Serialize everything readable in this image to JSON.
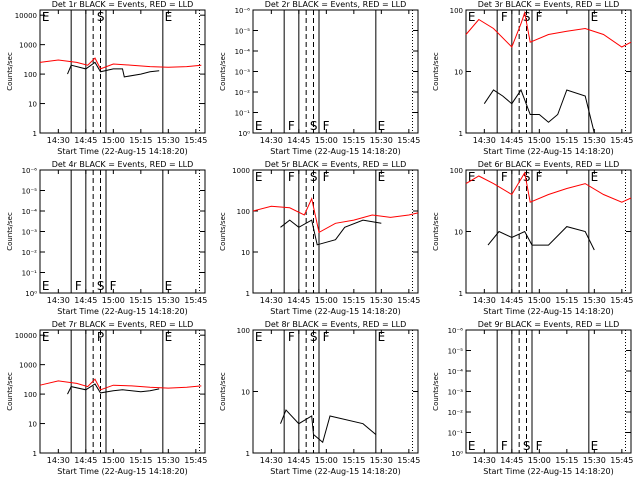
{
  "event_lines": [
    {
      "x": "14:37",
      "style": "solid"
    },
    {
      "x": "14:45",
      "style": "solid"
    },
    {
      "x": "14:49",
      "style": "dashed"
    },
    {
      "x": "14:53",
      "style": "dashed"
    },
    {
      "x": "14:56",
      "style": "solid"
    },
    {
      "x": "15:27",
      "style": "solid"
    },
    {
      "x": "15:47",
      "style": "dotted"
    }
  ],
  "chart_data": [
    {
      "type": "line",
      "title": "Det 1r BLACK = Events, RED = LLD",
      "xlabel": "Start Time (22-Aug-15 14:18:20)",
      "ylabel": "Counts/sec",
      "xlim": [
        "14:20",
        "15:50"
      ],
      "xticks": [
        "14:30",
        "14:45",
        "15:00",
        "15:15",
        "15:30",
        "15:45"
      ],
      "log_y": true,
      "ylim": [
        1,
        15000
      ],
      "yticks": [
        1,
        10,
        100,
        1000,
        10000
      ],
      "annotation_position": "top",
      "annotations": [
        {
          "text": "E",
          "x": "14:21"
        },
        {
          "text": "S",
          "x": "14:51"
        },
        {
          "text": "E",
          "x": "15:28"
        }
      ],
      "series": [
        {
          "color": "#ff0000",
          "x": [
            "14:20",
            "14:30",
            "14:40",
            "14:46",
            "14:50",
            "14:53",
            "15:00",
            "15:10",
            "15:20",
            "15:30",
            "15:40",
            "15:48"
          ],
          "values": [
            250,
            300,
            250,
            200,
            350,
            150,
            220,
            200,
            180,
            170,
            180,
            200
          ]
        },
        {
          "color": "#000000",
          "x": [
            "14:35",
            "14:37",
            "14:45",
            "14:50",
            "14:53",
            "15:00",
            "15:05",
            "15:06",
            "15:15",
            "15:20",
            "15:25"
          ],
          "values": [
            100,
            200,
            150,
            250,
            120,
            150,
            150,
            80,
            100,
            120,
            130
          ]
        }
      ]
    },
    {
      "type": "line",
      "title": "Det 2r BLACK = Events, RED = LLD",
      "xlabel": "Start Time (22-Aug-15 14:18:20)",
      "ylabel": "Counts/sec",
      "xlim": [
        "14:20",
        "15:50"
      ],
      "xticks": [
        "14:30",
        "14:45",
        "15:00",
        "15:15",
        "15:30",
        "15:45"
      ],
      "log_y": true,
      "ylim": [
        1,
        1e-06
      ],
      "yticks": [
        {
          "value": 1,
          "label": "10⁰"
        },
        {
          "value": 0.1,
          "label": "10⁻¹"
        },
        {
          "value": 0.01,
          "label": "10⁻²"
        },
        {
          "value": 0.001,
          "label": "10⁻³"
        },
        {
          "value": 0.0001,
          "label": "10⁻⁴"
        },
        {
          "value": 1e-05,
          "label": "10⁻⁵"
        },
        {
          "value": 1e-06,
          "label": "10⁻⁶"
        }
      ],
      "annotation_position": "bottom",
      "annotations": [
        {
          "text": "E",
          "x": "14:21"
        },
        {
          "text": "F",
          "x": "14:39"
        },
        {
          "text": "S",
          "x": "14:51"
        },
        {
          "text": "F",
          "x": "14:58"
        },
        {
          "text": "E",
          "x": "15:28"
        }
      ],
      "series": []
    },
    {
      "type": "line",
      "title": "Det 3r BLACK = Events, RED = LLD",
      "xlabel": "Start Time (22-Aug-15 14:18:20)",
      "ylabel": "Counts/sec",
      "xlim": [
        "14:20",
        "15:50"
      ],
      "xticks": [
        "14:30",
        "14:45",
        "15:00",
        "15:15",
        "15:30",
        "15:45"
      ],
      "log_y": true,
      "ylim": [
        1,
        100
      ],
      "yticks": [
        1,
        10,
        100
      ],
      "annotation_position": "top",
      "annotations": [
        {
          "text": "E",
          "x": "14:21"
        },
        {
          "text": "F",
          "x": "14:39"
        },
        {
          "text": "S",
          "x": "14:51"
        },
        {
          "text": "F",
          "x": "14:58"
        },
        {
          "text": "E",
          "x": "15:28"
        }
      ],
      "series": [
        {
          "color": "#ff0000",
          "x": [
            "14:20",
            "14:27",
            "14:35",
            "14:45",
            "14:50",
            "14:52",
            "14:55",
            "15:05",
            "15:15",
            "15:25",
            "15:35",
            "15:45",
            "15:50"
          ],
          "values": [
            40,
            70,
            50,
            25,
            60,
            90,
            30,
            40,
            45,
            50,
            40,
            25,
            30
          ]
        },
        {
          "color": "#000000",
          "x": [
            "14:30",
            "14:35",
            "14:40",
            "14:45",
            "14:50",
            "14:55",
            "15:00",
            "15:05",
            "15:10",
            "15:15",
            "15:25",
            "15:30"
          ],
          "values": [
            3,
            5,
            4,
            3,
            5,
            2,
            2,
            1.5,
            2,
            5,
            4,
            1
          ]
        }
      ]
    },
    {
      "type": "line",
      "title": "Det 4r BLACK = Events, RED = LLD",
      "xlabel": "Start Time (22-Aug-15 14:18:20)",
      "ylabel": "Counts/sec",
      "xlim": [
        "14:20",
        "15:50"
      ],
      "xticks": [
        "14:30",
        "14:45",
        "15:00",
        "15:15",
        "15:30",
        "15:45"
      ],
      "log_y": true,
      "ylim": [
        1,
        1e-06
      ],
      "yticks": [
        {
          "value": 1,
          "label": "10⁰"
        },
        {
          "value": 0.1,
          "label": "10⁻¹"
        },
        {
          "value": 0.01,
          "label": "10⁻²"
        },
        {
          "value": 0.001,
          "label": "10⁻³"
        },
        {
          "value": 0.0001,
          "label": "10⁻⁴"
        },
        {
          "value": 1e-05,
          "label": "10⁻⁵"
        },
        {
          "value": 1e-06,
          "label": "10⁻⁶"
        }
      ],
      "annotation_position": "bottom",
      "annotations": [
        {
          "text": "E",
          "x": "14:21"
        },
        {
          "text": "F",
          "x": "14:39"
        },
        {
          "text": "S",
          "x": "14:51"
        },
        {
          "text": "F",
          "x": "14:58"
        },
        {
          "text": "E",
          "x": "15:28"
        }
      ],
      "series": []
    },
    {
      "type": "line",
      "title": "Det 5r BLACK = Events, RED = LLD",
      "xlabel": "Start Time (22-Aug-15 14:18:20)",
      "ylabel": "Counts/sec",
      "xlim": [
        "14:20",
        "15:50"
      ],
      "xticks": [
        "14:30",
        "14:45",
        "15:00",
        "15:15",
        "15:30",
        "15:45"
      ],
      "log_y": true,
      "ylim": [
        1,
        1000
      ],
      "yticks": [
        1,
        10,
        100,
        1000
      ],
      "annotation_position": "top",
      "annotations": [
        {
          "text": "E",
          "x": "14:21"
        },
        {
          "text": "F",
          "x": "14:39"
        },
        {
          "text": "S",
          "x": "14:51"
        },
        {
          "text": "F",
          "x": "14:58"
        },
        {
          "text": "E",
          "x": "15:28"
        }
      ],
      "series": [
        {
          "color": "#ff0000",
          "x": [
            "14:20",
            "14:30",
            "14:40",
            "14:48",
            "14:52",
            "14:56",
            "15:05",
            "15:15",
            "15:25",
            "15:35",
            "15:45",
            "15:50"
          ],
          "values": [
            100,
            130,
            120,
            80,
            200,
            30,
            50,
            60,
            80,
            70,
            80,
            90
          ]
        },
        {
          "color": "#000000",
          "x": [
            "14:35",
            "14:40",
            "14:45",
            "14:52",
            "14:55",
            "15:05",
            "15:10",
            "15:20",
            "15:30"
          ],
          "values": [
            40,
            60,
            40,
            60,
            15,
            20,
            40,
            60,
            50
          ]
        }
      ]
    },
    {
      "type": "line",
      "title": "Det 6r BLACK = Events, RED = LLD",
      "xlabel": "Start Time (22-Aug-15 14:18:20)",
      "ylabel": "Counts/sec",
      "xlim": [
        "14:20",
        "15:50"
      ],
      "xticks": [
        "14:30",
        "14:45",
        "15:00",
        "15:15",
        "15:30",
        "15:45"
      ],
      "log_y": true,
      "ylim": [
        1,
        100
      ],
      "yticks": [
        1,
        10,
        100
      ],
      "annotation_position": "top",
      "annotations": [
        {
          "text": "E",
          "x": "14:21"
        },
        {
          "text": "F",
          "x": "14:39"
        },
        {
          "text": "S",
          "x": "14:51"
        },
        {
          "text": "F",
          "x": "14:58"
        },
        {
          "text": "E",
          "x": "15:28"
        }
      ],
      "series": [
        {
          "color": "#ff0000",
          "x": [
            "14:20",
            "14:27",
            "14:35",
            "14:45",
            "14:52",
            "14:55",
            "15:05",
            "15:15",
            "15:25",
            "15:35",
            "15:45",
            "15:50"
          ],
          "values": [
            60,
            80,
            60,
            40,
            90,
            30,
            40,
            50,
            60,
            40,
            30,
            35
          ]
        },
        {
          "color": "#000000",
          "x": [
            "14:32",
            "14:38",
            "14:45",
            "14:52",
            "14:56",
            "15:05",
            "15:15",
            "15:25",
            "15:30"
          ],
          "values": [
            6,
            10,
            8,
            10,
            6,
            6,
            12,
            10,
            5
          ]
        }
      ]
    },
    {
      "type": "line",
      "title": "Det 7r BLACK = Events, RED = LLD",
      "xlabel": "Start Time (22-Aug-15 14:18:20)",
      "ylabel": "Counts/sec",
      "xlim": [
        "14:20",
        "15:50"
      ],
      "xticks": [
        "14:30",
        "14:45",
        "15:00",
        "15:15",
        "15:30",
        "15:45"
      ],
      "log_y": true,
      "ylim": [
        1,
        15000
      ],
      "yticks": [
        1,
        10,
        100,
        1000,
        10000
      ],
      "annotation_position": "top",
      "annotations": [
        {
          "text": "E",
          "x": "14:21"
        },
        {
          "text": "P",
          "x": "14:51"
        },
        {
          "text": "E",
          "x": "15:28"
        }
      ],
      "series": [
        {
          "color": "#ff0000",
          "x": [
            "14:20",
            "14:30",
            "14:40",
            "14:46",
            "14:50",
            "14:53",
            "15:00",
            "15:10",
            "15:20",
            "15:30",
            "15:40",
            "15:48"
          ],
          "values": [
            200,
            280,
            230,
            180,
            320,
            140,
            200,
            190,
            170,
            160,
            170,
            190
          ]
        },
        {
          "color": "#000000",
          "x": [
            "14:35",
            "14:37",
            "14:45",
            "14:50",
            "14:53",
            "15:00",
            "15:05",
            "15:15",
            "15:20",
            "15:25"
          ],
          "values": [
            100,
            180,
            140,
            220,
            110,
            130,
            140,
            120,
            130,
            150
          ]
        }
      ]
    },
    {
      "type": "line",
      "title": "Det 8r BLACK = Events, RED = LLD",
      "xlabel": "Start Time (22-Aug-15 14:18:20)",
      "ylabel": "Counts/sec",
      "xlim": [
        "14:20",
        "15:50"
      ],
      "xticks": [
        "14:30",
        "14:45",
        "15:00",
        "15:15",
        "15:30",
        "15:45"
      ],
      "log_y": true,
      "ylim": [
        1,
        100
      ],
      "yticks": [
        1,
        10,
        100
      ],
      "annotation_position": "top",
      "annotations": [
        {
          "text": "E",
          "x": "14:21"
        },
        {
          "text": "F",
          "x": "14:39"
        },
        {
          "text": "S",
          "x": "14:51"
        },
        {
          "text": "F",
          "x": "14:58"
        },
        {
          "text": "E",
          "x": "15:28"
        }
      ],
      "series": [
        {
          "color": "#000000",
          "x": [
            "14:35",
            "14:38",
            "14:45",
            "14:52",
            "14:53",
            "14:58",
            "15:02",
            "15:20",
            "15:27"
          ],
          "values": [
            3,
            5,
            3,
            4,
            2,
            1.5,
            4,
            3,
            2
          ]
        }
      ]
    },
    {
      "type": "line",
      "title": "Det 9r BLACK = Events, RED = LLD",
      "xlabel": "Start Time (22-Aug-15 14:18:20)",
      "ylabel": "Counts/sec",
      "xlim": [
        "14:20",
        "15:50"
      ],
      "xticks": [
        "14:30",
        "14:45",
        "15:00",
        "15:15",
        "15:30",
        "15:45"
      ],
      "log_y": true,
      "ylim": [
        1,
        1e-06
      ],
      "yticks": [
        {
          "value": 1,
          "label": "10⁰"
        },
        {
          "value": 0.1,
          "label": "10⁻¹"
        },
        {
          "value": 0.01,
          "label": "10⁻²"
        },
        {
          "value": 0.001,
          "label": "10⁻³"
        },
        {
          "value": 0.0001,
          "label": "10⁻⁴"
        },
        {
          "value": 1e-05,
          "label": "10⁻⁵"
        },
        {
          "value": 1e-06,
          "label": "10⁻⁶"
        }
      ],
      "annotation_position": "bottom",
      "annotations": [
        {
          "text": "E",
          "x": "14:21"
        },
        {
          "text": "F",
          "x": "14:39"
        },
        {
          "text": "S",
          "x": "14:51"
        },
        {
          "text": "F",
          "x": "14:58"
        },
        {
          "text": "E",
          "x": "15:28"
        }
      ],
      "series": []
    }
  ]
}
